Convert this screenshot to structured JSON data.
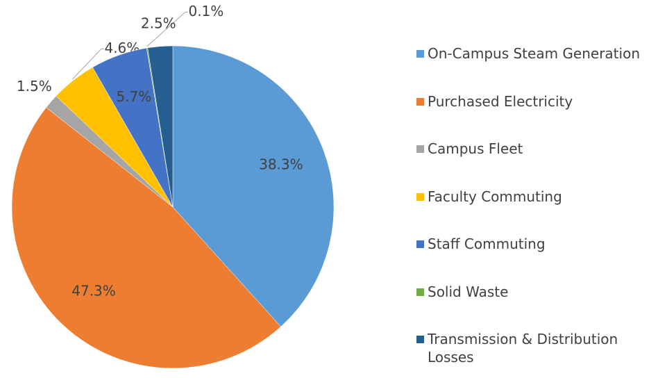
{
  "chart_data": {
    "type": "pie",
    "categories": [
      "On-Campus Steam Generation",
      "Purchased Electricity",
      "Campus Fleet",
      "Faculty Commuting",
      "Staff Commuting",
      "Solid Waste",
      "Transmission & Distribution Losses"
    ],
    "values": [
      38.3,
      47.3,
      1.5,
      4.6,
      5.7,
      0.1,
      2.5
    ],
    "value_labels": [
      "38.3%",
      "47.3%",
      "1.5%",
      "4.6%",
      "5.7%",
      "0.1%",
      "2.5%"
    ],
    "colors": [
      "#5b9bd5",
      "#ed7d31",
      "#a5a5a5",
      "#ffc000",
      "#4472c4",
      "#70ad47",
      "#255e91"
    ],
    "legend": "right"
  }
}
